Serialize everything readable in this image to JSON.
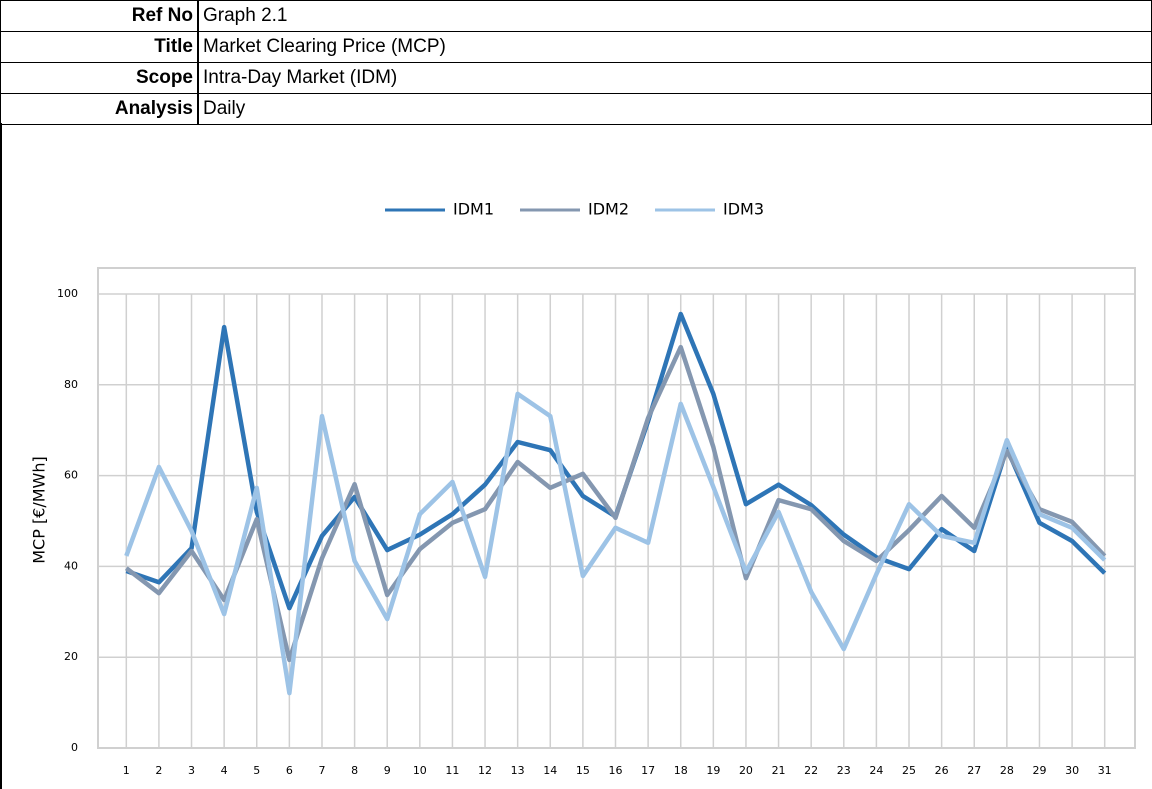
{
  "header": {
    "rows": [
      [
        "Ref No",
        "Graph 2.1"
      ],
      [
        "Title",
        "Market Clearing Price (MCP)"
      ],
      [
        "Scope",
        "Intra-Day Market (IDM)"
      ],
      [
        "Analysis",
        "Daily"
      ]
    ]
  },
  "chart_data": {
    "type": "line",
    "y_label": "MCP [€/MWh]",
    "categories": [
      "1",
      "2",
      "3",
      "4",
      "5",
      "6",
      "7",
      "8",
      "9",
      "10",
      "11",
      "12",
      "13",
      "14",
      "15",
      "16",
      "17",
      "18",
      "19",
      "20",
      "21",
      "22",
      "23",
      "24",
      "25",
      "26",
      "27",
      "28",
      "29",
      "30",
      "31"
    ],
    "series": [
      {
        "name": "IDM1",
        "color": "#2e75b6",
        "values": [
          39,
          36.5,
          44,
          92.7,
          52,
          30.8,
          46.7,
          55.3,
          43.6,
          47,
          51.5,
          58,
          67.4,
          65.6,
          55.5,
          51,
          72,
          95.6,
          78,
          53.7,
          58,
          53.5,
          47,
          42,
          39.4,
          48.2,
          43.4,
          66,
          49.6,
          45.6,
          38.5
        ]
      },
      {
        "name": "IDM2",
        "color": "#8497b0",
        "values": [
          39.6,
          34.1,
          43.4,
          32.6,
          50.4,
          19.4,
          41.8,
          58.1,
          33.7,
          43.8,
          49.6,
          52.6,
          63,
          57.3,
          60.4,
          50.7,
          72.7,
          88.3,
          66.3,
          37.4,
          54.6,
          52.6,
          45.6,
          41.2,
          48,
          55.5,
          48.5,
          65.4,
          52.6,
          49.8,
          42.3
        ]
      },
      {
        "name": "IDM3",
        "color": "#9dc3e6",
        "values": [
          42.3,
          61.9,
          47.8,
          29.5,
          57.3,
          12.1,
          73.1,
          41.2,
          28.4,
          51.5,
          58.6,
          37.7,
          78,
          73.1,
          37.9,
          48.5,
          45.2,
          75.8,
          57.5,
          38.8,
          52,
          34.4,
          21.8,
          38.3,
          53.7,
          46.7,
          45.2,
          67.8,
          51.5,
          48.5,
          41.4
        ]
      }
    ],
    "ylim": [
      0,
      100
    ],
    "yticks": [
      0,
      20,
      40,
      60,
      80,
      100
    ],
    "grid": true,
    "legend": "top"
  }
}
